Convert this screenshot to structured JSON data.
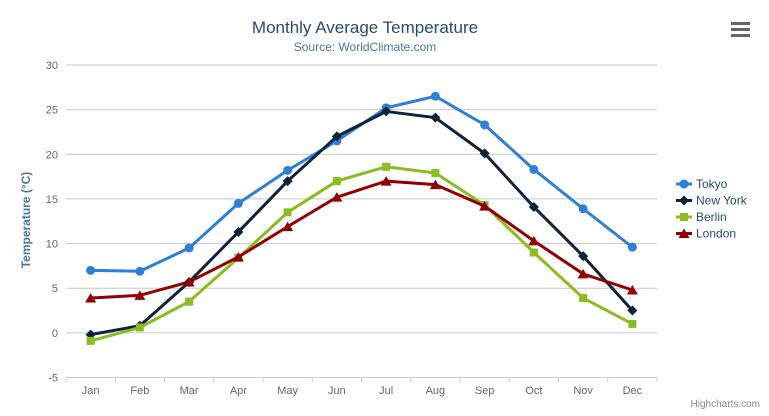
{
  "credit": "Highcharts.com",
  "colors": {
    "grid": "#C8C8C8",
    "axis_line": "#C0D0E0",
    "tick": "#C0D0E0",
    "axis_label": "#666666",
    "legend_text": "#274b6d",
    "title_text": "#274b6d",
    "subtitle_text": "#4d759e",
    "menu_icon": "#666666"
  },
  "chart_data": {
    "type": "line",
    "title": "Monthly Average Temperature",
    "subtitle": "Source: WorldClimate.com",
    "xlabel": "",
    "ylabel": "Temperature (°C)",
    "categories": [
      "Jan",
      "Feb",
      "Mar",
      "Apr",
      "May",
      "Jun",
      "Jul",
      "Aug",
      "Sep",
      "Oct",
      "Nov",
      "Dec"
    ],
    "ylim": [
      -5,
      30
    ],
    "yticks": [
      -5,
      0,
      5,
      10,
      15,
      20,
      25,
      30
    ],
    "grid": true,
    "legend_position": "right",
    "series": [
      {
        "name": "Tokyo",
        "color": "#2f7ed8",
        "marker": "circle",
        "values": [
          7.0,
          6.9,
          9.5,
          14.5,
          18.2,
          21.5,
          25.2,
          26.5,
          23.3,
          18.3,
          13.9,
          9.6
        ]
      },
      {
        "name": "New York",
        "color": "#0d233a",
        "marker": "diamond",
        "values": [
          -0.2,
          0.8,
          5.7,
          11.3,
          17.0,
          22.0,
          24.8,
          24.1,
          20.1,
          14.1,
          8.6,
          2.5
        ]
      },
      {
        "name": "Berlin",
        "color": "#8bbc21",
        "marker": "square",
        "values": [
          -0.9,
          0.6,
          3.5,
          8.4,
          13.5,
          17.0,
          18.6,
          17.9,
          14.3,
          9.0,
          3.9,
          1.0
        ]
      },
      {
        "name": "London",
        "color": "#910000",
        "marker": "triangle",
        "values": [
          3.9,
          4.2,
          5.7,
          8.5,
          11.9,
          15.2,
          17.0,
          16.6,
          14.2,
          10.3,
          6.6,
          4.8
        ]
      }
    ]
  }
}
